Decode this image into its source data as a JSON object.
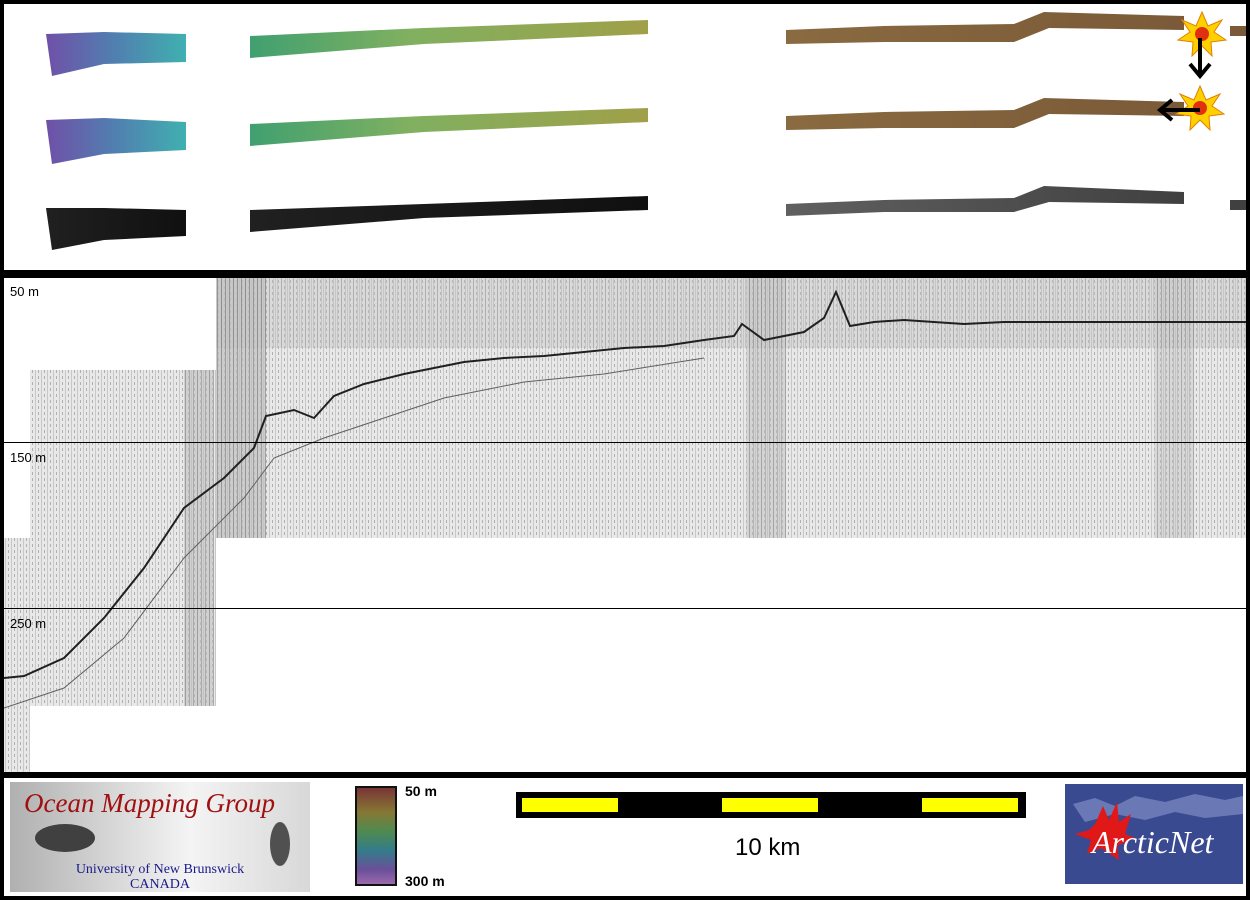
{
  "depth_labels": [
    "50 m",
    "150 m",
    "250 m"
  ],
  "logo": {
    "title": "Ocean Mapping Group",
    "university": "University of New Brunswick",
    "country": "CANADA"
  },
  "colorbar": {
    "top_label": "50 m",
    "bottom_label": "300 m",
    "colors": [
      "#8a3b3b",
      "#9b8a3b",
      "#5aa05a",
      "#3a8fa0",
      "#7a5ab0",
      "#b478c8"
    ]
  },
  "scale_bar": {
    "label": "10 km",
    "segments": [
      "yellow",
      "black",
      "yellow",
      "black",
      "yellow"
    ],
    "colors": {
      "yellow": "#ffff00",
      "black": "#000000"
    }
  },
  "partner_logo": {
    "text": "ArcticNet",
    "leaf_color": "#e01818",
    "background": "#3a4a90"
  },
  "sun_icons": [
    "sun-icon",
    "sun-icon"
  ],
  "arrows": [
    "arrow-down-icon",
    "arrow-left-icon"
  ]
}
